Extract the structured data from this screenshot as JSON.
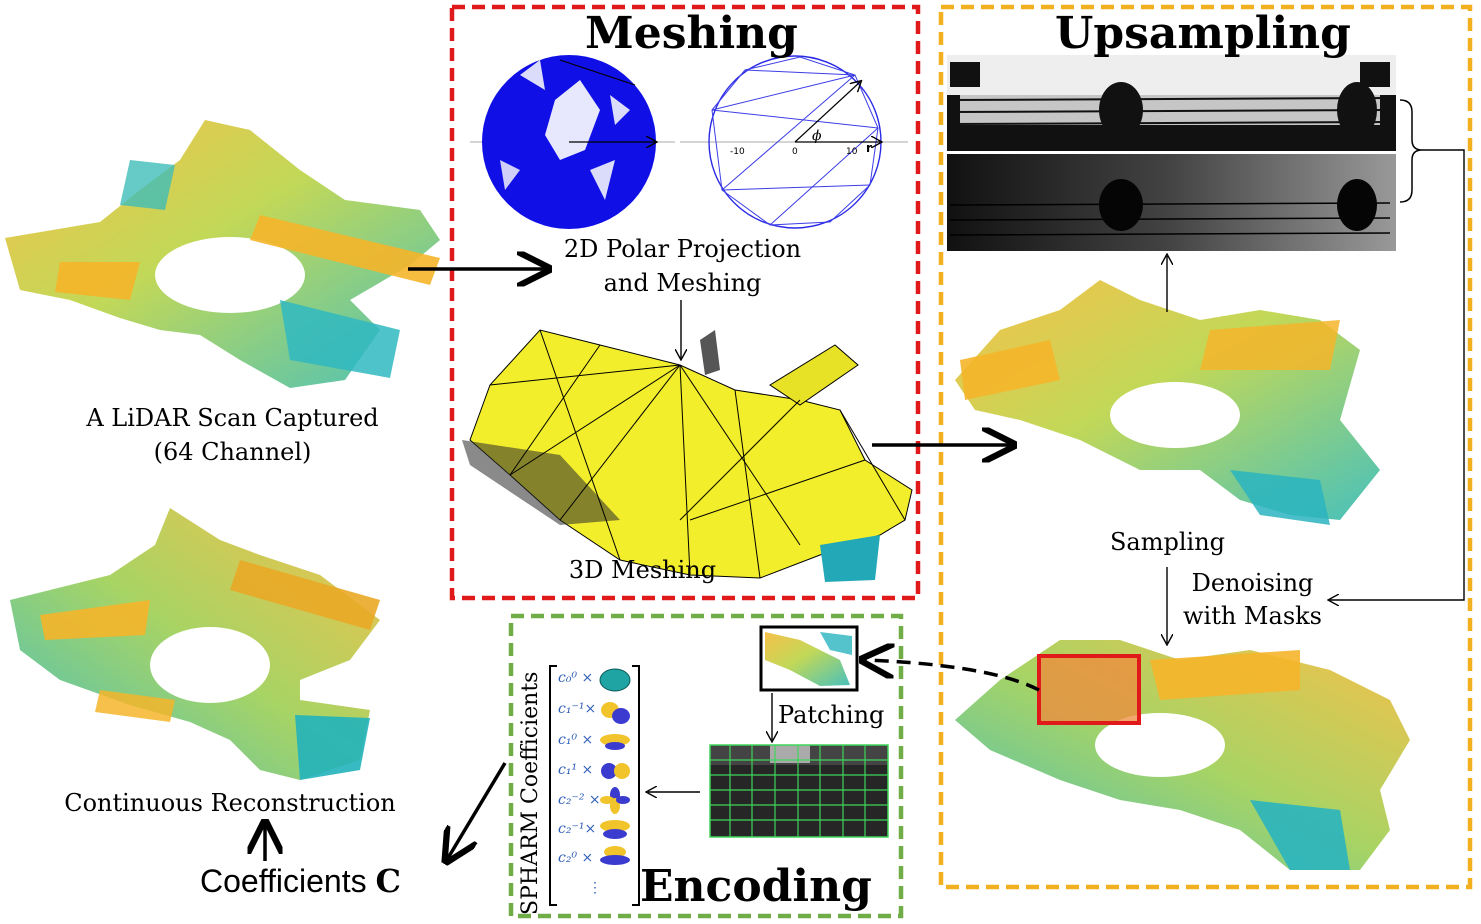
{
  "sections": {
    "meshing_title": "Meshing",
    "upsampling_title": "Upsampling",
    "encoding_title": "Encoding"
  },
  "labels": {
    "lidar_line1": "A LiDAR Scan Captured",
    "lidar_line2": "(64 Channel)",
    "polar_line1": "2D Polar Projection",
    "polar_line2": "and Meshing",
    "meshing_3d": "3D Meshing",
    "sampling": "Sampling",
    "denoise_line1": "Denoising",
    "denoise_line2": "with Masks",
    "patching": "Patching",
    "reconstruction": "Continuous Reconstruction",
    "coefficients": "Coefficients",
    "coefficients_symbol": "C",
    "spharm": "SPHARM Coefficients",
    "polar_phi": "ϕ",
    "polar_r": "r",
    "tick_0": "0",
    "tick_neg10": "-10",
    "tick_10": "10",
    "ellipsis": "⋮"
  },
  "coefficients": [
    "c₀⁰ ×",
    "c₁⁻¹×",
    "c₁⁰ ×",
    "c₁¹ ×",
    "c₂⁻² ×",
    "c₂⁻¹×",
    "c₂⁰ ×"
  ],
  "colors": {
    "meshing_border": "#e01a1a",
    "upsampling_border": "#f2b01e",
    "encoding_border": "#70ad47",
    "mesh_yellow": "#f2ee2c",
    "polar_blue": "#1010e6",
    "cloud_yellow": "#f5b52a",
    "cloud_teal": "#27b6b0",
    "highlight_red": "#e01a1a",
    "coef_blue": "#2d5db6"
  }
}
